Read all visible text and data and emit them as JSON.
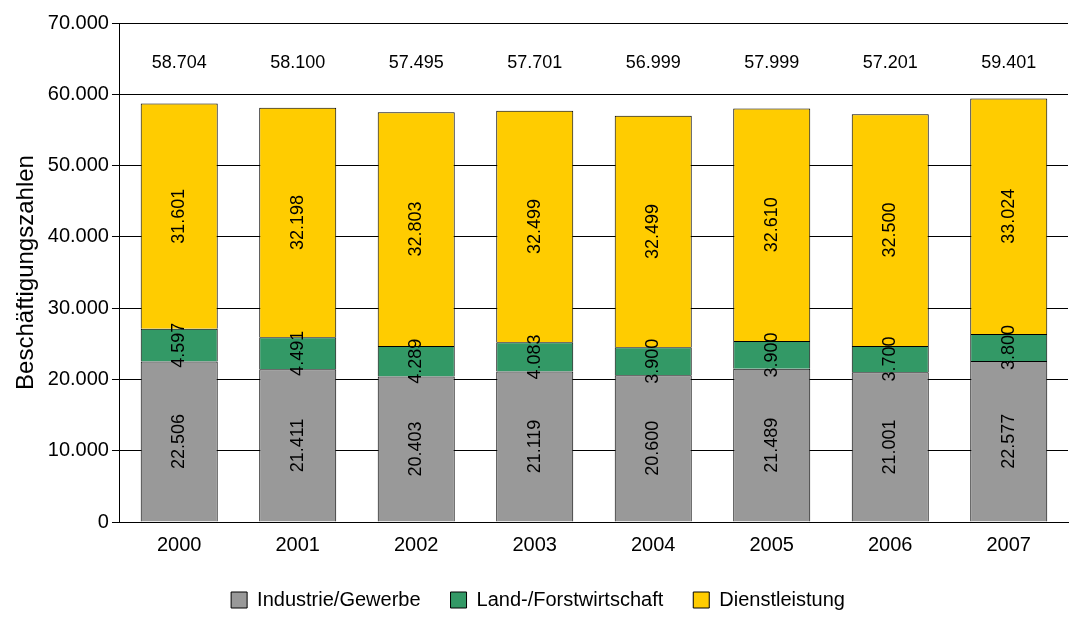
{
  "chart_data": {
    "type": "bar",
    "stacked": true,
    "ylabel": "Beschäftigungszahlen",
    "categories": [
      "2000",
      "2001",
      "2002",
      "2003",
      "2004",
      "2005",
      "2006",
      "2007"
    ],
    "series": [
      {
        "name": "Industrie/Gewerbe",
        "color": "#999999",
        "values": [
          22506,
          21411,
          20403,
          21119,
          20600,
          21489,
          21001,
          22577
        ],
        "value_labels": [
          "22.506",
          "21.411",
          "20.403",
          "21.119",
          "20.600",
          "21.489",
          "21.001",
          "22.577"
        ]
      },
      {
        "name": "Land-/Forstwirtschaft",
        "color": "#339966",
        "values": [
          4597,
          4491,
          4289,
          4083,
          3900,
          3900,
          3700,
          3800
        ],
        "value_labels": [
          "4.597",
          "4.491",
          "4.289",
          "4.083",
          "3.900",
          "3.900",
          "3.700",
          "3.800"
        ]
      },
      {
        "name": "Dienstleistung",
        "color": "#ffcc00",
        "values": [
          31601,
          32198,
          32803,
          32499,
          32499,
          32610,
          32500,
          33024
        ],
        "value_labels": [
          "31.601",
          "32.198",
          "32.803",
          "32.499",
          "32.499",
          "32.610",
          "32.500",
          "33.024"
        ]
      }
    ],
    "totals": [
      "58.704",
      "58.100",
      "57.495",
      "57.701",
      "56.999",
      "57.999",
      "57.201",
      "59.401"
    ],
    "ylim": [
      0,
      70000
    ],
    "yticks": [
      0,
      {
        "value": 10000,
        "label": "10.000"
      },
      {
        "value": 20000,
        "label": "20.000"
      },
      {
        "value": 30000,
        "label": "30.000"
      },
      {
        "value": 40000,
        "label": "40.000"
      },
      {
        "value": 50000,
        "label": "50.000"
      },
      {
        "value": 60000,
        "label": "60.000"
      },
      {
        "value": 70000,
        "label": "70.000"
      }
    ],
    "grid": "y",
    "legend": "bottom"
  }
}
